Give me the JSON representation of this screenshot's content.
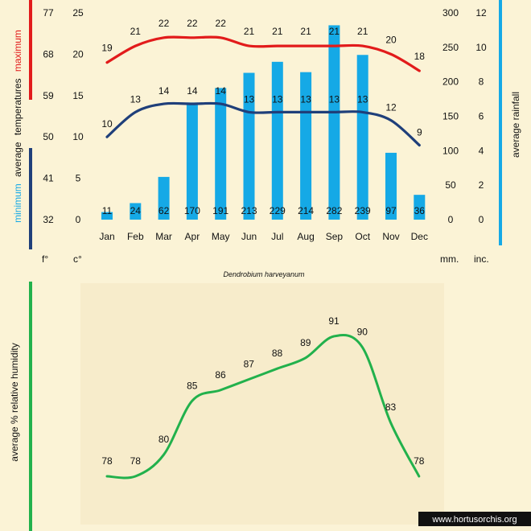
{
  "caption": "Dendrobium harveyanum",
  "credit": "www.hortusorchis.org",
  "colors": {
    "background": "#fbf3d6",
    "panel": "#f7eccb",
    "maximum": "#e21b1b",
    "minimum": "#1f3f7a",
    "rainfall": "#15a9e6",
    "humidity": "#22b14c"
  },
  "chart_data": [
    {
      "type": "bar+line",
      "categories": [
        "Jan",
        "Feb",
        "Mar",
        "Apr",
        "May",
        "Jun",
        "Jul",
        "Aug",
        "Sep",
        "Oct",
        "Nov",
        "Dec"
      ],
      "series": [
        {
          "name": "maximum",
          "type": "line",
          "axis": "celsius",
          "values": [
            19,
            21,
            22,
            22,
            22,
            21,
            21,
            21,
            21,
            21,
            20,
            18
          ]
        },
        {
          "name": "minimum",
          "type": "line",
          "axis": "celsius",
          "values": [
            10,
            13,
            14,
            14,
            14,
            13,
            13,
            13,
            13,
            13,
            12,
            9
          ]
        },
        {
          "name": "rainfall",
          "type": "bar",
          "axis": "mm",
          "values": [
            11,
            24,
            62,
            170,
            191,
            213,
            229,
            214,
            282,
            239,
            97,
            36
          ]
        }
      ],
      "left_label_parts": {
        "minimum": "minimum",
        "average": "average",
        "temperatures": "temperatures",
        "maximum": "maximum"
      },
      "right_label": "average rainfall",
      "axes": {
        "fahrenheit": {
          "label": "f°",
          "ticks": [
            "32",
            "41",
            "50",
            "59",
            "68",
            "77"
          ],
          "range": [
            32,
            77
          ]
        },
        "celsius": {
          "label": "c°",
          "ticks": [
            "0",
            "5",
            "10",
            "15",
            "20",
            "25"
          ],
          "range": [
            0,
            25
          ]
        },
        "mm": {
          "label": "mm.",
          "ticks": [
            "0",
            "50",
            "100",
            "150",
            "200",
            "250",
            "300"
          ],
          "range": [
            0,
            300
          ]
        },
        "inches": {
          "label": "inc.",
          "ticks": [
            "0",
            "2",
            "4",
            "6",
            "8",
            "10",
            "12"
          ],
          "range": [
            0,
            12
          ]
        }
      },
      "grid": false
    },
    {
      "type": "line",
      "categories": [
        "Jan",
        "Feb",
        "Mar",
        "Apr",
        "May",
        "Jun",
        "Jul",
        "Aug",
        "Sep",
        "Oct",
        "Nov",
        "Dec"
      ],
      "series": [
        {
          "name": "humidity",
          "values": [
            78,
            78,
            80,
            85,
            86,
            87,
            88,
            89,
            91,
            90,
            83,
            78
          ]
        }
      ],
      "ylabel": "average %  relative humidity",
      "xlabel": "",
      "ylim": [
        74,
        93
      ],
      "grid": false
    }
  ]
}
